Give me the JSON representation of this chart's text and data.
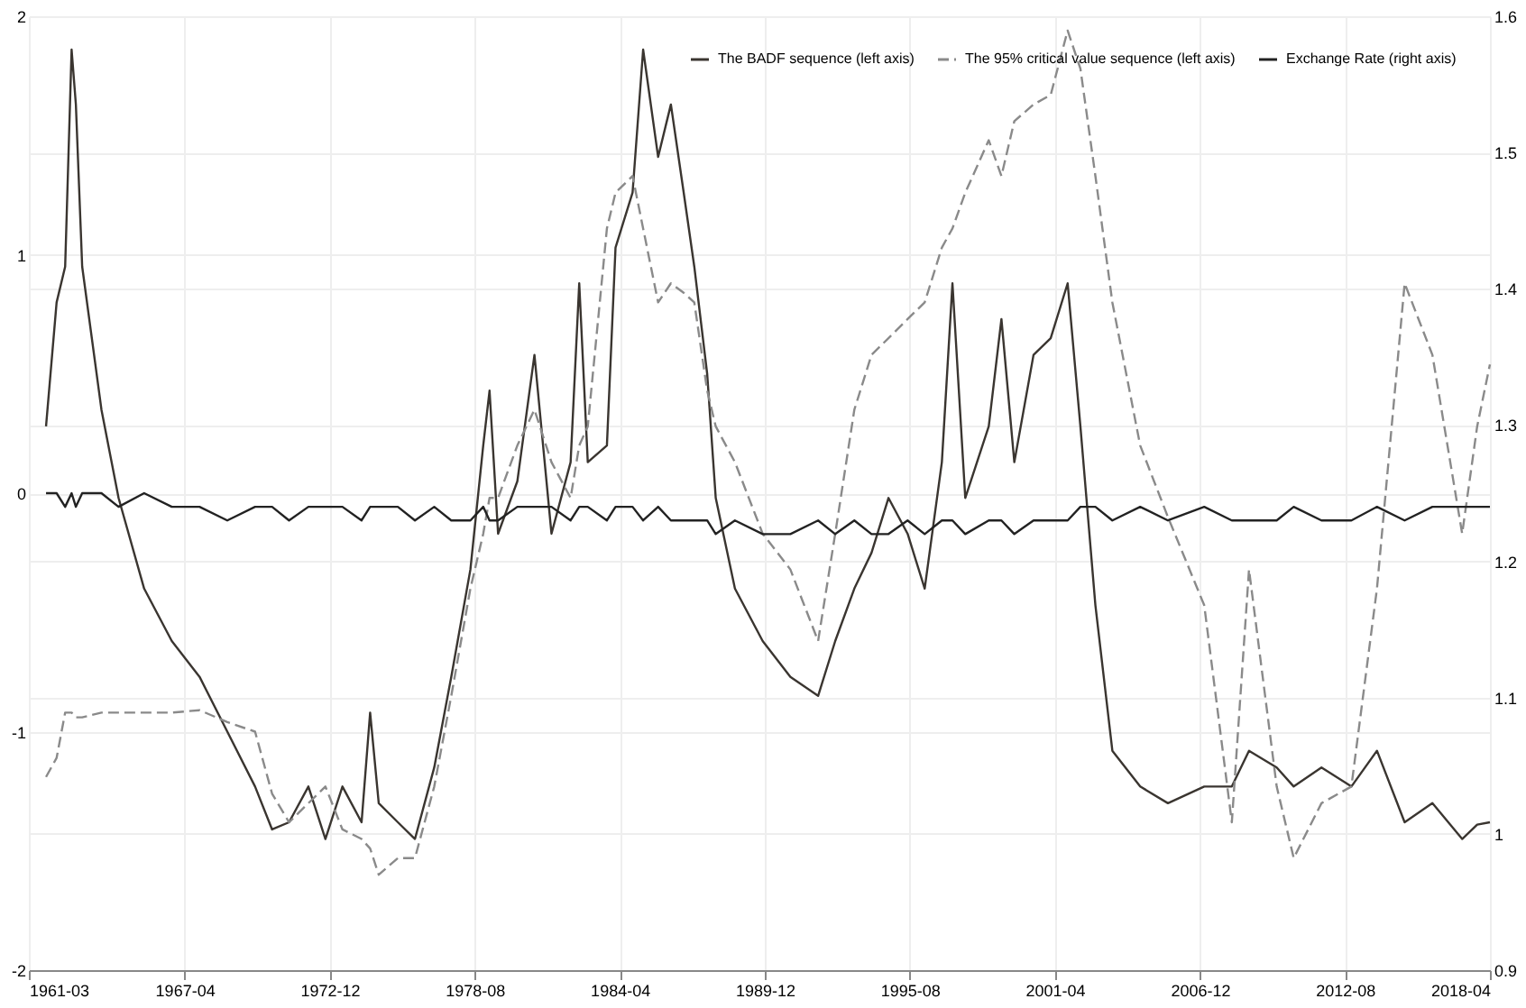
{
  "chart_data": {
    "type": "line",
    "x": [
      "1961-11",
      "1962-04",
      "1962-08",
      "1962-11",
      "1963-01",
      "1963-04",
      "1964-01",
      "1964-09",
      "1965-09",
      "1966-10",
      "1967-11",
      "1968-12",
      "1970-01",
      "1970-09",
      "1971-05",
      "1972-02",
      "1972-10",
      "1973-06",
      "1974-03",
      "1974-07",
      "1974-11",
      "1975-08",
      "1976-04",
      "1977-01",
      "1977-09",
      "1978-06",
      "1978-12",
      "1979-03",
      "1979-07",
      "1980-04",
      "1980-12",
      "1981-08",
      "1982-05",
      "1982-09",
      "1983-01",
      "1983-10",
      "1984-02",
      "1984-10",
      "1985-03",
      "1985-10",
      "1986-04",
      "1986-10",
      "1987-03",
      "1987-09",
      "1988-01",
      "1988-10",
      "1989-11",
      "1990-12",
      "1992-01",
      "1992-09",
      "1993-06",
      "1994-02",
      "1994-10",
      "1995-07",
      "1996-03",
      "1996-11",
      "1997-04",
      "1997-10",
      "1998-09",
      "1999-03",
      "1999-09",
      "2000-06",
      "2001-02",
      "2001-10",
      "2002-04",
      "2002-11",
      "2003-07",
      "2004-08",
      "2005-09",
      "2007-02",
      "2008-03",
      "2008-11",
      "2009-12",
      "2010-08",
      "2011-09",
      "2012-11",
      "2013-11",
      "2014-12",
      "2016-01",
      "2017-03",
      "2017-10",
      "2018-04"
    ],
    "series": [
      {
        "name": "The BADF sequence (left axis)",
        "color": "#3a3530",
        "line_style": "solid",
        "values": [
          0.28,
          0.8,
          0.95,
          1.86,
          1.63,
          0.95,
          0.35,
          -0.02,
          -0.4,
          -0.62,
          -0.77,
          -1.0,
          -1.23,
          -1.41,
          -1.38,
          -1.23,
          -1.45,
          -1.23,
          -1.38,
          -0.92,
          -1.3,
          -1.38,
          -1.45,
          -1.15,
          -0.77,
          -0.32,
          0.2,
          0.43,
          -0.17,
          0.05,
          0.58,
          -0.17,
          0.13,
          0.88,
          0.13,
          0.2,
          1.03,
          1.26,
          1.86,
          1.41,
          1.63,
          1.26,
          0.95,
          0.5,
          -0.02,
          -0.4,
          -0.62,
          -0.77,
          -0.85,
          -0.62,
          -0.4,
          -0.25,
          -0.02,
          -0.17,
          -0.4,
          0.13,
          0.88,
          -0.02,
          0.28,
          0.73,
          0.13,
          0.58,
          0.65,
          0.88,
          0.28,
          -0.47,
          -1.08,
          -1.23,
          -1.3,
          -1.23,
          -1.23,
          -1.08,
          -1.15,
          -1.23,
          -1.15,
          -1.23,
          -1.08,
          -1.38,
          -1.3,
          -1.45,
          -1.39,
          -1.38
        ]
      },
      {
        "name": "The 95% critical value sequence (left axis)",
        "color": "#8a8a8a",
        "line_style": "dashed",
        "values": [
          -1.19,
          -1.11,
          -0.92,
          -0.92,
          -0.94,
          -0.94,
          -0.92,
          -0.92,
          -0.92,
          -0.92,
          -0.91,
          -0.96,
          -1.0,
          -1.26,
          -1.38,
          -1.3,
          -1.23,
          -1.41,
          -1.45,
          -1.49,
          -1.6,
          -1.53,
          -1.53,
          -1.23,
          -0.85,
          -0.4,
          -0.17,
          -0.02,
          -0.02,
          0.2,
          0.35,
          0.13,
          -0.02,
          0.2,
          0.28,
          1.11,
          1.26,
          1.33,
          1.11,
          0.8,
          0.88,
          0.84,
          0.8,
          0.43,
          0.28,
          0.13,
          -0.17,
          -0.32,
          -0.62,
          -0.17,
          0.35,
          0.58,
          0.65,
          0.73,
          0.8,
          1.03,
          1.11,
          1.26,
          1.48,
          1.33,
          1.56,
          1.63,
          1.67,
          1.94,
          1.78,
          1.33,
          0.8,
          0.2,
          -0.1,
          -0.47,
          -1.38,
          -0.32,
          -1.23,
          -1.53,
          -1.3,
          -1.23,
          -0.4,
          0.88,
          0.58,
          -0.17,
          0.28,
          0.54
        ]
      },
      {
        "name": "Exchange Rate (right axis)",
        "color": "#222222",
        "line_style": "solid",
        "axis": "y2",
        "values": [
          1.25,
          1.25,
          1.24,
          1.25,
          1.24,
          1.25,
          1.25,
          1.24,
          1.25,
          1.24,
          1.24,
          1.23,
          1.24,
          1.24,
          1.23,
          1.24,
          1.24,
          1.24,
          1.23,
          1.24,
          1.24,
          1.24,
          1.23,
          1.24,
          1.23,
          1.23,
          1.24,
          1.23,
          1.23,
          1.24,
          1.24,
          1.24,
          1.23,
          1.24,
          1.24,
          1.23,
          1.24,
          1.24,
          1.23,
          1.24,
          1.23,
          1.23,
          1.23,
          1.23,
          1.22,
          1.23,
          1.22,
          1.22,
          1.23,
          1.22,
          1.23,
          1.22,
          1.22,
          1.23,
          1.22,
          1.23,
          1.23,
          1.22,
          1.23,
          1.23,
          1.22,
          1.23,
          1.23,
          1.23,
          1.24,
          1.24,
          1.23,
          1.24,
          1.23,
          1.24,
          1.23,
          1.23,
          1.23,
          1.24,
          1.23,
          1.23,
          1.24,
          1.23,
          1.24,
          1.24,
          1.24,
          1.24
        ]
      }
    ],
    "xlim": [
      "1961-03",
      "2018-04"
    ],
    "xticks": [
      "1961-03",
      "1967-04",
      "1972-12",
      "1978-08",
      "1984-04",
      "1989-12",
      "1995-08",
      "2001-04",
      "2006-12",
      "2012-08",
      "2018-04"
    ],
    "ylim": [
      -2,
      2
    ],
    "yticks": [
      -2,
      -1,
      0,
      1,
      2
    ],
    "y2lim": [
      0.9,
      1.6
    ],
    "y2ticks": [
      0.9,
      1.0,
      1.1,
      1.2,
      1.3,
      1.4,
      1.5,
      1.6
    ],
    "grid": true,
    "legend": "top right",
    "marker": "none"
  }
}
